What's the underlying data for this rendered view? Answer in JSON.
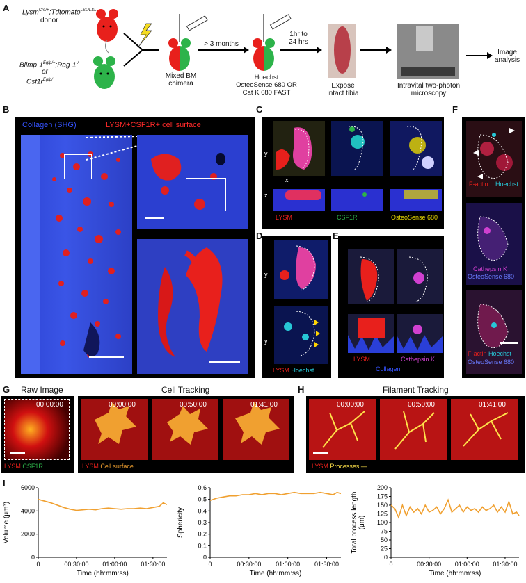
{
  "panelA": {
    "label": "A",
    "donor_line1": "Lysm",
    "donor_line1_sup": "Cre/+",
    "donor_line1b": ";Tdtomato",
    "donor_line1b_sup": "LSL/LSL",
    "donor_line2": "donor",
    "recipient_line1": "Blimp-1",
    "recipient_line1_sup": "Egfp/+",
    "recipient_line1b": ";Rag-1",
    "recipient_line1b_sup": "-/-",
    "recipient_or": "or",
    "recipient_line2": "Csf1r",
    "recipient_line2_sup": "Egfp/+",
    "chimera_label": "Mixed BM\nchimera",
    "months_label": "> 3 months",
    "injection_label": "Hoechst\nOsteoSense 680 OR\nCat K 680 FAST",
    "time_label": "1hr to\n24 hrs",
    "tibia_label": "Expose\nintact tibia",
    "microscopy_label": "Intravital two-photon\nmicroscopy",
    "analysis_label": "Image\nanalysis"
  },
  "panelB": {
    "label": "B",
    "legend_collagen": "Collagen (SHG)",
    "legend_lysm": "LYSM+CSF1R+ cell surface"
  },
  "panelC": {
    "label": "C",
    "ch1": "LYSM",
    "ch2": "CSF1R",
    "ch3": "OsteoSense 680"
  },
  "panelD": {
    "label": "D",
    "ch1": "LYSM",
    "ch2": "Hoechst"
  },
  "panelE": {
    "label": "E",
    "ch1": "LYSM",
    "ch2": "Cathepsin K",
    "ch3": "Collagen"
  },
  "panelF": {
    "label": "F",
    "top_a": "F-actin",
    "top_b": "Hoechst",
    "mid_a": "Cathepsin K",
    "mid_b": "OsteoSense 680",
    "bot_a": "F-actin",
    "bot_b": "Hoechst",
    "bot_c": "OsteoSense 680"
  },
  "panelG": {
    "label": "G",
    "raw_title": "Raw Image",
    "tracking_title": "Cell Tracking",
    "raw_time": "00:00:00",
    "times": [
      "00:00:00",
      "00:50:00",
      "01:41:00"
    ],
    "raw_legend_a": "LYSM",
    "raw_legend_b": "CSF1R",
    "track_legend_a": "LYSM",
    "track_legend_b": "Cell surface"
  },
  "panelH": {
    "label": "H",
    "title": "Filament Tracking",
    "times": [
      "00:00:00",
      "00:50:00",
      "01:41:00"
    ],
    "legend_a": "LYSM",
    "legend_b": "Processes"
  },
  "panelI": {
    "label": "I"
  },
  "colors": {
    "series": "#f0a030",
    "lysm": "#e8201c",
    "csf1r": "#2db34a",
    "hoechst": "#27c6d6",
    "osteo": "#e8d800",
    "cathepsin": "#d040d0",
    "collagen": "#2a3fd8",
    "process": "#ffe24a"
  },
  "chart_data": [
    {
      "type": "line",
      "xlabel": "Time (hh:mm:ss)",
      "ylabel": "Volume (μm³)",
      "ylim": [
        0,
        6000
      ],
      "yticks": [
        "0",
        "2000",
        "4000",
        "6000"
      ],
      "xticks": [
        "0",
        "00:30:00",
        "01:00:00",
        "01:30:00"
      ],
      "xtick_minutes": [
        0,
        30,
        60,
        90
      ],
      "xmax_minutes": 101,
      "x_minutes": [
        0,
        5,
        10,
        15,
        20,
        25,
        30,
        35,
        40,
        45,
        50,
        55,
        60,
        65,
        70,
        75,
        80,
        85,
        90,
        95,
        98,
        101
      ],
      "values": [
        5000,
        4850,
        4700,
        4500,
        4300,
        4150,
        4050,
        4100,
        4150,
        4100,
        4200,
        4250,
        4200,
        4150,
        4200,
        4200,
        4250,
        4200,
        4300,
        4400,
        4700,
        4550
      ]
    },
    {
      "type": "line",
      "xlabel": "Time (hh:mm:ss)",
      "ylabel": "Sphericity",
      "ylim": [
        0,
        0.6
      ],
      "yticks": [
        "0",
        "0.1",
        "0.2",
        "0.3",
        "0.4",
        "0.5",
        "0.6"
      ],
      "xticks": [
        "0",
        "00:30:00",
        "01:00:00",
        "01:30:00"
      ],
      "xtick_minutes": [
        0,
        30,
        60,
        90
      ],
      "xmax_minutes": 101,
      "x_minutes": [
        0,
        5,
        10,
        15,
        20,
        25,
        30,
        35,
        40,
        45,
        50,
        55,
        60,
        65,
        70,
        75,
        80,
        85,
        90,
        95,
        98,
        101
      ],
      "values": [
        0.49,
        0.51,
        0.52,
        0.53,
        0.53,
        0.54,
        0.54,
        0.55,
        0.54,
        0.55,
        0.55,
        0.54,
        0.55,
        0.56,
        0.55,
        0.55,
        0.55,
        0.56,
        0.55,
        0.54,
        0.56,
        0.55
      ]
    },
    {
      "type": "line",
      "xlabel": "Time (hh:mm:ss)",
      "ylabel": "Total process length\n(μm)",
      "ylim": [
        0,
        200
      ],
      "yticks": [
        "0",
        "25",
        "50",
        "75",
        "100",
        "125",
        "150",
        "175",
        "200"
      ],
      "xticks": [
        "0",
        "00:30:00",
        "01:00:00",
        "01:30:00"
      ],
      "xtick_minutes": [
        0,
        30,
        60,
        90
      ],
      "xmax_minutes": 101,
      "x_minutes": [
        0,
        3,
        6,
        9,
        12,
        15,
        18,
        21,
        24,
        27,
        30,
        33,
        36,
        39,
        42,
        45,
        48,
        51,
        54,
        57,
        60,
        63,
        66,
        69,
        72,
        75,
        78,
        81,
        84,
        87,
        90,
        93,
        96,
        99,
        101
      ],
      "values": [
        150,
        140,
        115,
        150,
        120,
        145,
        130,
        140,
        125,
        150,
        130,
        135,
        145,
        125,
        140,
        165,
        130,
        140,
        150,
        130,
        145,
        135,
        140,
        130,
        145,
        135,
        140,
        150,
        130,
        145,
        130,
        160,
        125,
        130,
        120
      ]
    }
  ]
}
